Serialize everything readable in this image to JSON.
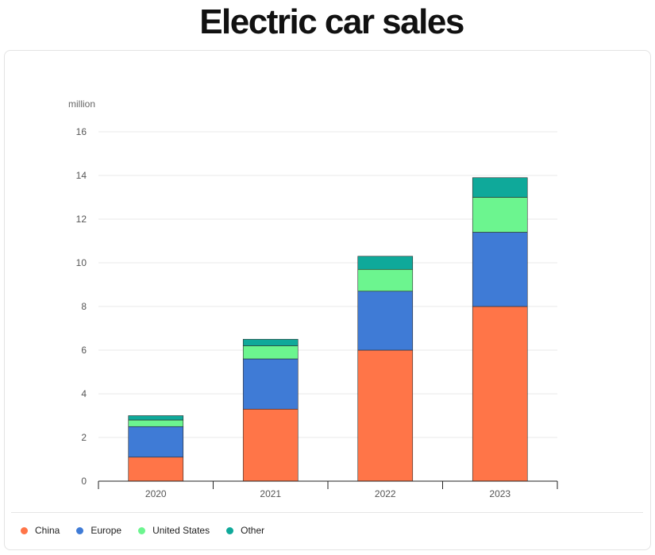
{
  "title": "Electric car sales",
  "chart_data": {
    "type": "bar",
    "stacked": true,
    "unit_label": "million",
    "categories": [
      "2020",
      "2021",
      "2022",
      "2023"
    ],
    "series": [
      {
        "name": "China",
        "color": "#ff7548",
        "values": [
          1.1,
          3.3,
          6.0,
          8.0
        ]
      },
      {
        "name": "Europe",
        "color": "#3f7bd6",
        "values": [
          1.4,
          2.3,
          2.7,
          3.4
        ]
      },
      {
        "name": "United States",
        "color": "#6cf58f",
        "values": [
          0.3,
          0.6,
          1.0,
          1.6
        ]
      },
      {
        "name": "Other",
        "color": "#0fa99a",
        "values": [
          0.2,
          0.3,
          0.6,
          0.9
        ]
      }
    ],
    "ylim": [
      0,
      16
    ],
    "yticks": [
      "0",
      "2",
      "4",
      "6",
      "8",
      "10",
      "12",
      "14",
      "16"
    ],
    "grid": true,
    "legend_position": "bottom-left"
  }
}
